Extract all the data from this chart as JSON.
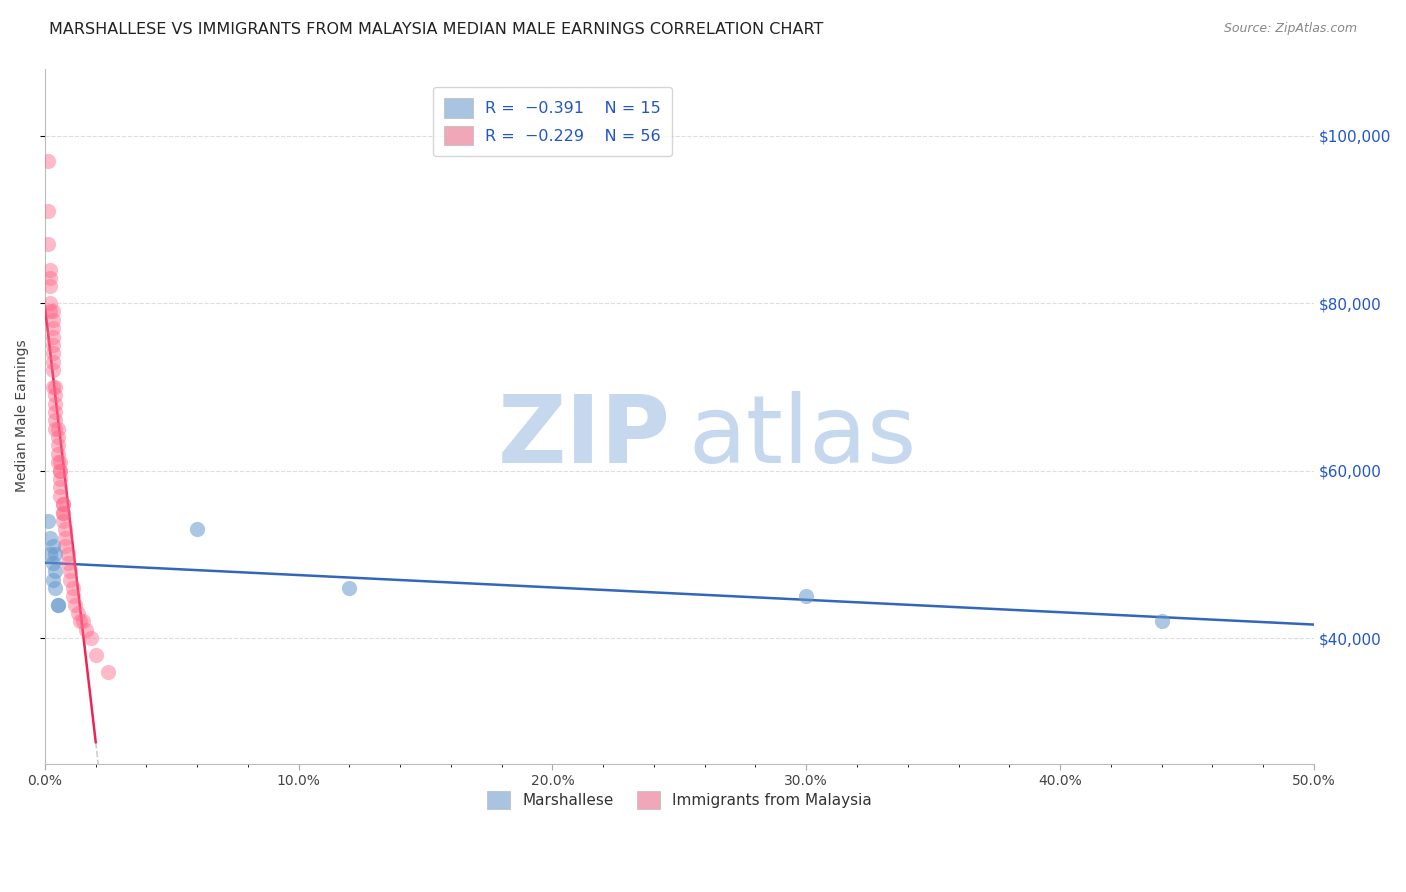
{
  "title": "MARSHALLESE VS IMMIGRANTS FROM MALAYSIA MEDIAN MALE EARNINGS CORRELATION CHART",
  "source": "Source: ZipAtlas.com",
  "ylabel": "Median Male Earnings",
  "yticks": [
    40000,
    60000,
    80000,
    100000
  ],
  "ytick_labels": [
    "$40,000",
    "$60,000",
    "$80,000",
    "$100,000"
  ],
  "xlim": [
    0.0,
    0.5
  ],
  "ylim": [
    25000,
    108000
  ],
  "marshallese_x": [
    0.001,
    0.002,
    0.002,
    0.003,
    0.003,
    0.003,
    0.004,
    0.004,
    0.004,
    0.005,
    0.06,
    0.12,
    0.3,
    0.44,
    0.005
  ],
  "marshallese_y": [
    54000,
    52000,
    50000,
    51000,
    49000,
    47000,
    50000,
    48000,
    46000,
    44000,
    53000,
    46000,
    45000,
    42000,
    44000
  ],
  "malaysia_x": [
    0.001,
    0.001,
    0.001,
    0.002,
    0.002,
    0.002,
    0.002,
    0.002,
    0.003,
    0.003,
    0.003,
    0.003,
    0.003,
    0.003,
    0.003,
    0.003,
    0.003,
    0.004,
    0.004,
    0.004,
    0.004,
    0.004,
    0.004,
    0.005,
    0.005,
    0.005,
    0.005,
    0.005,
    0.006,
    0.006,
    0.006,
    0.006,
    0.006,
    0.006,
    0.007,
    0.007,
    0.007,
    0.007,
    0.007,
    0.008,
    0.008,
    0.008,
    0.009,
    0.009,
    0.01,
    0.01,
    0.011,
    0.011,
    0.012,
    0.013,
    0.014,
    0.015,
    0.016,
    0.018,
    0.02,
    0.025
  ],
  "malaysia_y": [
    97000,
    91000,
    87000,
    84000,
    83000,
    82000,
    80000,
    79000,
    79000,
    78000,
    77000,
    76000,
    75000,
    74000,
    73000,
    72000,
    70000,
    70000,
    69000,
    68000,
    67000,
    66000,
    65000,
    65000,
    64000,
    63000,
    62000,
    61000,
    61000,
    60000,
    60000,
    59000,
    58000,
    57000,
    56000,
    56000,
    55000,
    55000,
    54000,
    53000,
    52000,
    51000,
    50000,
    49000,
    48000,
    47000,
    46000,
    45000,
    44000,
    43000,
    42000,
    42000,
    41000,
    40000,
    38000,
    36000
  ],
  "marshallese_color": "#6699cc",
  "malaysia_color": "#ff6688",
  "marshallese_line_color": "#3366bb",
  "malaysia_line_color": "#ee2255",
  "watermark_zip_color": "#c5d8ee",
  "watermark_atlas_color": "#c5d8ee",
  "background_color": "#ffffff",
  "grid_color": "#dddddd",
  "top_legend_R1": "R = ",
  "top_legend_V1": "-0.391",
  "top_legend_N1": "N = 15",
  "top_legend_R2": "R = ",
  "top_legend_V2": "-0.229",
  "top_legend_N2": "N = 56",
  "bot_legend_1": "Marshallese",
  "bot_legend_2": "Immigrants from Malaysia"
}
